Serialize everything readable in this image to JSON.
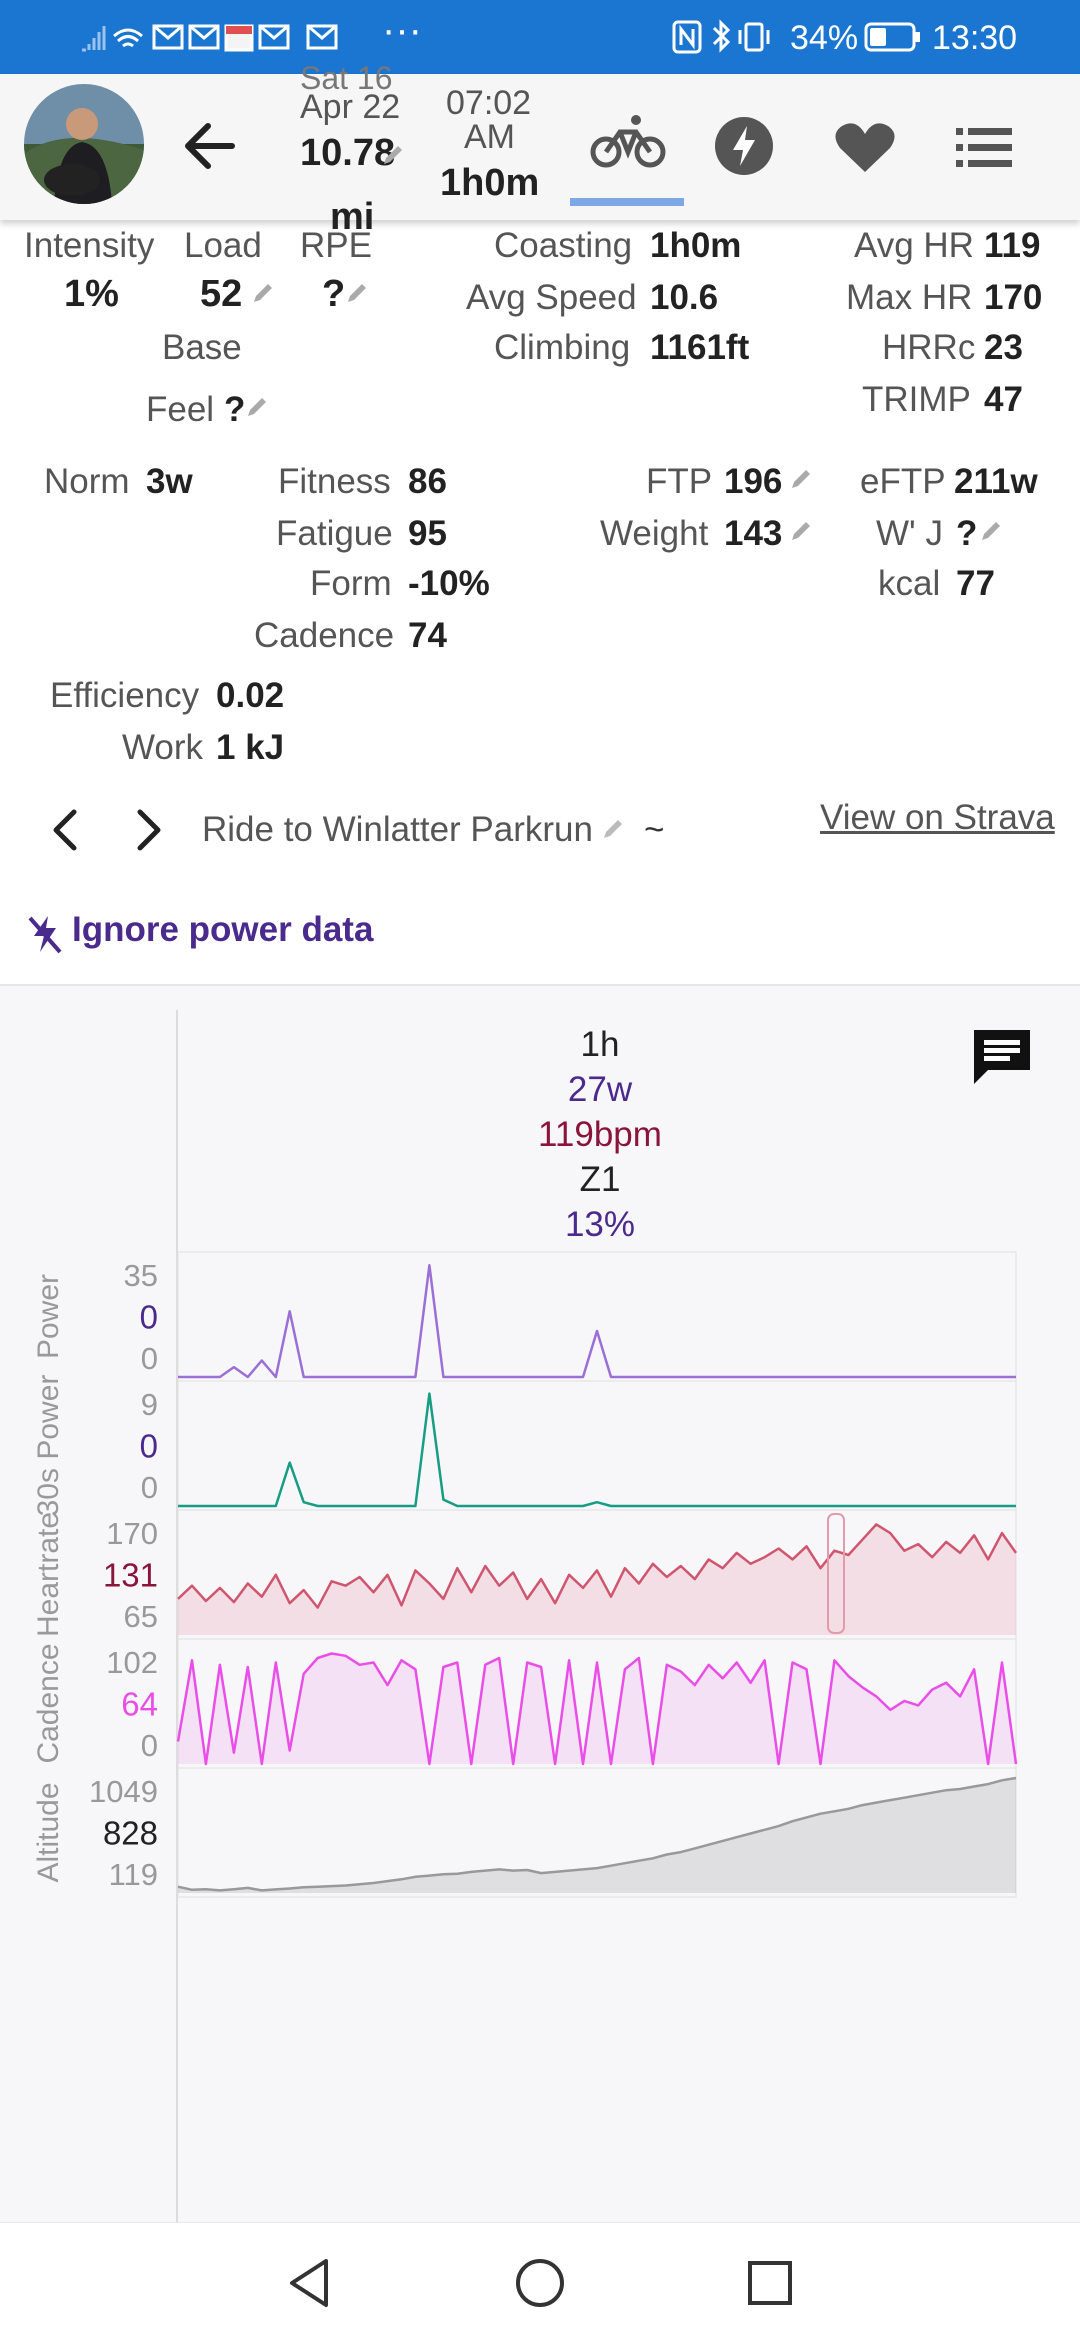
{
  "status": {
    "time": "13:30",
    "battery": "34%",
    "icons": [
      "signal-icon",
      "wifi-icon",
      "mail-icon",
      "mail-icon",
      "calendar-icon",
      "mail-icon",
      "mail-icon",
      "more-icon"
    ],
    "ellipsis": "···"
  },
  "header": {
    "date_partial": "Sat 16",
    "date": "Apr 22",
    "distance": "10.78",
    "distance_unit": "mi",
    "time": "07:02",
    "ampm": "AM",
    "duration": "1h0m"
  },
  "stats": {
    "intensity_label": "Intensity",
    "intensity_value": "1%",
    "load_label": "Load",
    "load_value": "52",
    "rpe_label": "RPE",
    "rpe_value": "?",
    "base": "Base",
    "feel_label": "Feel",
    "feel_value": "?",
    "coasting_label": "Coasting",
    "coasting_value": "1h0m",
    "avg_speed_label": "Avg Speed",
    "avg_speed_value": "10.6",
    "climbing_label": "Climbing",
    "climbing_value": "1161ft",
    "avg_hr_label": "Avg HR",
    "avg_hr_value": "119",
    "max_hr_label": "Max HR",
    "max_hr_value": "170",
    "hrrc_label": "HRRc",
    "hrrc_value": "23",
    "trimp_label": "TRIMP",
    "trimp_value": "47",
    "norm_label": "Norm",
    "norm_value": "3w",
    "fitness_label": "Fitness",
    "fitness_value": "86",
    "fatigue_label": "Fatigue",
    "fatigue_value": "95",
    "form_label": "Form",
    "form_value": "-10%",
    "cadence_label": "Cadence",
    "cadence_value": "74",
    "ftp_label": "FTP",
    "ftp_value": "196",
    "weight_label": "Weight",
    "weight_value": "143",
    "eftp_label": "eFTP",
    "eftp_value": "211w",
    "wj_label": "W' J",
    "wj_value": "?",
    "kcal_label": "kcal",
    "kcal_value": "77",
    "efficiency_label": "Efficiency",
    "efficiency_value": "0.02",
    "work_label": "Work",
    "work_value": "1 kJ"
  },
  "activity": {
    "name": "Ride to Winlatter Parkrun",
    "tilde": "~",
    "strava_link": "View on Strava",
    "ignore_power": "Ignore power data"
  },
  "chart_summary": {
    "duration": "1h",
    "power": "27w",
    "hr": "119bpm",
    "zone": "Z1",
    "percent": "13%"
  },
  "colors": {
    "statusbar": "#1b76d2",
    "accent_purple": "#4a2a8c",
    "power": "#9b6fd6",
    "power30": "#169d83",
    "heartrate": "#d0566f",
    "cadence": "#ea4ee8",
    "altitude": "#999999",
    "hr_text": "#8a1538",
    "tab_underline": "#7ea7e6"
  },
  "chart_data": [
    {
      "type": "line",
      "title": "",
      "ylabel": "Power",
      "ticks": [
        "35",
        "0",
        "0"
      ],
      "ylim": [
        0,
        35
      ],
      "x": [
        0,
        1,
        2,
        3,
        4,
        5,
        6,
        7,
        8,
        9,
        10,
        11,
        12,
        13,
        14,
        15,
        16,
        17,
        18,
        19,
        20,
        21,
        22,
        23,
        24,
        25,
        26,
        27,
        28,
        29,
        30,
        31,
        32,
        33,
        34,
        35,
        36,
        37,
        38,
        39,
        40,
        41,
        42,
        43,
        44,
        45,
        46,
        47,
        48,
        49,
        50,
        51,
        52,
        53,
        54,
        55,
        56,
        57,
        58,
        59,
        60
      ],
      "values": [
        0,
        0,
        0,
        0,
        3,
        0,
        5,
        0,
        20,
        0,
        0,
        0,
        0,
        0,
        0,
        0,
        0,
        0,
        34,
        0,
        0,
        0,
        0,
        0,
        0,
        0,
        0,
        0,
        0,
        0,
        14,
        0,
        0,
        0,
        0,
        0,
        0,
        0,
        0,
        0,
        0,
        0,
        0,
        0,
        0,
        0,
        0,
        0,
        0,
        0,
        0,
        0,
        0,
        0,
        0,
        0,
        0,
        0,
        0,
        0,
        0
      ]
    },
    {
      "type": "line",
      "title": "",
      "ylabel": "30s Power",
      "ticks": [
        "9",
        "0",
        "0"
      ],
      "ylim": [
        0,
        9
      ],
      "x": [
        0,
        1,
        2,
        3,
        4,
        5,
        6,
        7,
        8,
        9,
        10,
        11,
        12,
        13,
        14,
        15,
        16,
        17,
        18,
        19,
        20,
        21,
        22,
        23,
        24,
        25,
        26,
        27,
        28,
        29,
        30,
        31,
        32,
        33,
        34,
        35,
        36,
        37,
        38,
        39,
        40,
        41,
        42,
        43,
        44,
        45,
        46,
        47,
        48,
        49,
        50,
        51,
        52,
        53,
        54,
        55,
        56,
        57,
        58,
        59,
        60
      ],
      "values": [
        0,
        0,
        0,
        0,
        0,
        0,
        0,
        0,
        3.4,
        0.3,
        0,
        0,
        0,
        0,
        0,
        0,
        0,
        0,
        8.8,
        0.5,
        0,
        0,
        0,
        0,
        0,
        0,
        0,
        0,
        0,
        0,
        0.3,
        0,
        0,
        0,
        0,
        0,
        0,
        0,
        0,
        0,
        0,
        0,
        0,
        0,
        0,
        0,
        0,
        0,
        0,
        0,
        0,
        0,
        0,
        0,
        0,
        0,
        0,
        0,
        0,
        0,
        0
      ]
    },
    {
      "type": "area",
      "title": "",
      "ylabel": "Heartrate",
      "ticks": [
        "170",
        "131",
        "65"
      ],
      "ylim": [
        65,
        170
      ],
      "x": [
        0,
        1,
        2,
        3,
        4,
        5,
        6,
        7,
        8,
        9,
        10,
        11,
        12,
        13,
        14,
        15,
        16,
        17,
        18,
        19,
        20,
        21,
        22,
        23,
        24,
        25,
        26,
        27,
        28,
        29,
        30,
        31,
        32,
        33,
        34,
        35,
        36,
        37,
        38,
        39,
        40,
        41,
        42,
        43,
        44,
        45,
        46,
        47,
        48,
        49,
        50,
        51,
        52,
        53,
        54,
        55,
        56,
        57,
        58,
        59,
        60
      ],
      "values": [
        98,
        110,
        96,
        108,
        95,
        112,
        100,
        120,
        94,
        106,
        90,
        114,
        110,
        118,
        104,
        120,
        92,
        124,
        112,
        98,
        126,
        104,
        128,
        110,
        122,
        98,
        116,
        94,
        120,
        108,
        124,
        100,
        126,
        112,
        130,
        118,
        128,
        116,
        134,
        126,
        140,
        130,
        136,
        144,
        134,
        146,
        126,
        142,
        138,
        152,
        166,
        158,
        142,
        148,
        136,
        150,
        140,
        156,
        134,
        158,
        140
      ]
    },
    {
      "type": "area",
      "title": "",
      "ylabel": "Cadence",
      "ticks": [
        "102",
        "64",
        "0"
      ],
      "ylim": [
        0,
        102
      ],
      "x": [
        0,
        1,
        2,
        3,
        4,
        5,
        6,
        7,
        8,
        9,
        10,
        11,
        12,
        13,
        14,
        15,
        16,
        17,
        18,
        19,
        20,
        21,
        22,
        23,
        24,
        25,
        26,
        27,
        28,
        29,
        30,
        31,
        32,
        33,
        34,
        35,
        36,
        37,
        38,
        39,
        40,
        41,
        42,
        43,
        44,
        45,
        46,
        47,
        48,
        49,
        50,
        51,
        52,
        53,
        54,
        55,
        56,
        57,
        58,
        59,
        60
      ],
      "values": [
        20,
        92,
        0,
        88,
        10,
        86,
        0,
        90,
        12,
        80,
        94,
        98,
        96,
        88,
        90,
        70,
        92,
        84,
        0,
        86,
        90,
        0,
        88,
        94,
        0,
        90,
        86,
        0,
        92,
        0,
        90,
        0,
        84,
        94,
        0,
        88,
        82,
        70,
        88,
        76,
        90,
        72,
        92,
        0,
        90,
        84,
        0,
        92,
        78,
        68,
        60,
        48,
        56,
        52,
        66,
        72,
        60,
        84,
        0,
        90,
        0
      ]
    },
    {
      "type": "area",
      "title": "",
      "ylabel": "Altitude",
      "ticks": [
        "1049",
        "828",
        "119"
      ],
      "ylim": [
        119,
        1049
      ],
      "x": [
        0,
        1,
        2,
        3,
        4,
        5,
        6,
        7,
        8,
        9,
        10,
        11,
        12,
        13,
        14,
        15,
        16,
        17,
        18,
        19,
        20,
        21,
        22,
        23,
        24,
        25,
        26,
        27,
        28,
        29,
        30,
        31,
        32,
        33,
        34,
        35,
        36,
        37,
        38,
        39,
        40,
        41,
        42,
        43,
        44,
        45,
        46,
        47,
        48,
        49,
        50,
        51,
        52,
        53,
        54,
        55,
        56,
        57,
        58,
        59,
        60
      ],
      "values": [
        170,
        145,
        150,
        140,
        150,
        160,
        140,
        148,
        155,
        165,
        170,
        175,
        180,
        190,
        200,
        215,
        230,
        250,
        260,
        270,
        275,
        290,
        300,
        310,
        300,
        305,
        280,
        290,
        300,
        310,
        320,
        340,
        360,
        380,
        400,
        430,
        450,
        480,
        510,
        540,
        570,
        600,
        630,
        660,
        700,
        730,
        760,
        780,
        800,
        830,
        850,
        870,
        890,
        910,
        930,
        950,
        960,
        980,
        1000,
        1030,
        1049
      ]
    }
  ],
  "nav": {
    "back": "back-nav",
    "home": "home-nav",
    "recents": "recents-nav"
  }
}
